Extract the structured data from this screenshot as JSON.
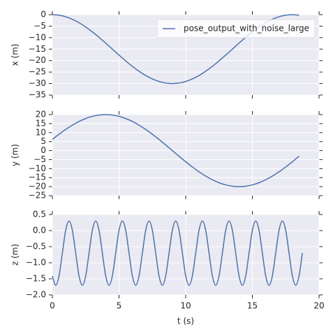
{
  "chart_data": [
    {
      "type": "line",
      "ylabel": "x (m)",
      "xlim": [
        0,
        20
      ],
      "xticks": [
        0,
        5,
        10,
        15,
        20
      ],
      "ylim": [
        -35,
        0
      ],
      "yticks": [
        {
          "value": -35,
          "label": "−35"
        },
        {
          "value": -30,
          "label": "−30"
        },
        {
          "value": -25,
          "label": "−25"
        },
        {
          "value": -20,
          "label": "−20"
        },
        {
          "value": -15,
          "label": "−15"
        },
        {
          "value": -10,
          "label": "−10"
        },
        {
          "value": -5,
          "label": "−5"
        },
        0
      ],
      "grid": true,
      "legend": "upper right",
      "x": [
        0,
        0.5,
        1,
        1.5,
        2,
        2.5,
        3,
        3.5,
        4,
        4.5,
        5,
        5.5,
        6,
        6.5,
        7,
        7.5,
        8,
        8.5,
        9,
        9.5,
        10,
        10.5,
        11,
        11.5,
        12,
        12.5,
        13,
        13.5,
        14,
        14.5,
        15,
        15.5,
        16,
        16.5,
        17,
        17.5,
        18,
        18.5
      ],
      "series": [
        {
          "name": "pose_output_with_noise_large",
          "color": "#4c72b0",
          "values": [
            0,
            -0.23,
            -0.9,
            -2.01,
            -3.51,
            -5.36,
            -7.5,
            -9.87,
            -12.39,
            -15,
            -17.61,
            -20.13,
            -22.5,
            -24.64,
            -26.49,
            -27.99,
            -29.1,
            -29.77,
            -30,
            -29.77,
            -29.1,
            -27.99,
            -26.49,
            -24.64,
            -22.5,
            -20.13,
            -17.61,
            -15,
            -12.39,
            -9.87,
            -7.5,
            -5.36,
            -3.51,
            -2.01,
            -0.9,
            -0.23,
            0,
            -0.23
          ]
        }
      ]
    },
    {
      "type": "line",
      "ylabel": "y (m)",
      "xlim": [
        0,
        20
      ],
      "xticks": [
        0,
        5,
        10,
        15,
        20
      ],
      "ylim": [
        -25,
        20
      ],
      "yticks": [
        {
          "value": -25,
          "label": "−25"
        },
        {
          "value": -20,
          "label": "−20"
        },
        {
          "value": -15,
          "label": "−15"
        },
        {
          "value": -10,
          "label": "−10"
        },
        {
          "value": -5,
          "label": "−5"
        },
        0,
        5,
        10,
        15,
        20
      ],
      "grid": true,
      "x": [
        0,
        0.5,
        1,
        1.5,
        2,
        2.5,
        3,
        3.5,
        4,
        4.5,
        5,
        5.5,
        6,
        6.5,
        7,
        7.5,
        8,
        8.5,
        9,
        9.5,
        10,
        10.5,
        11,
        11.5,
        12,
        12.5,
        13,
        13.5,
        14,
        14.5,
        15,
        15.5,
        16,
        16.5,
        17,
        17.5,
        18,
        18.5
      ],
      "series": [
        {
          "color": "#4c72b0",
          "values": [
            6.18,
            9.08,
            11.76,
            14.14,
            16.18,
            17.82,
            19.02,
            19.75,
            20,
            19.75,
            19.02,
            17.82,
            16.18,
            14.14,
            11.76,
            9.08,
            6.18,
            3.13,
            0,
            -3.13,
            -6.18,
            -9.08,
            -11.76,
            -14.14,
            -16.18,
            -17.82,
            -19.02,
            -19.75,
            -20,
            -19.75,
            -19.02,
            -17.82,
            -16.18,
            -14.14,
            -11.76,
            -9.08,
            -6.18,
            -3.13
          ]
        }
      ]
    },
    {
      "type": "line",
      "ylabel": "z (m)",
      "xlabel": "t (s)",
      "xlim": [
        0,
        20
      ],
      "xticks": [
        0,
        5,
        10,
        15,
        20
      ],
      "ylim": [
        -2,
        0.5
      ],
      "yticks": [
        {
          "value": -2,
          "label": "−2.0"
        },
        {
          "value": -1.5,
          "label": "−1.5"
        },
        {
          "value": -1,
          "label": "−1.0"
        },
        {
          "value": -0.5,
          "label": "−0.5"
        },
        {
          "value": 0,
          "label": "0.0"
        },
        0.5
      ],
      "grid": true,
      "x": [
        0,
        0.25,
        0.5,
        0.75,
        1,
        1.25,
        1.5,
        1.75,
        2,
        2.25,
        2.5,
        2.75,
        3,
        3.25,
        3.5,
        3.75,
        4,
        4.25,
        4.5,
        4.75,
        5,
        5.25,
        5.5,
        5.75,
        6,
        6.25,
        6.5,
        6.75,
        7,
        7.25,
        7.5,
        7.75,
        8,
        8.25,
        8.5,
        8.75,
        9,
        9.25,
        9.5,
        9.75,
        10,
        10.25,
        10.5,
        10.75,
        11,
        11.25,
        11.5,
        11.75,
        12,
        12.25,
        12.5,
        12.75,
        13,
        13.25,
        13.5,
        13.75,
        14,
        14.25,
        14.5,
        14.75,
        15,
        15.25,
        15.5,
        15.75,
        16,
        16.25,
        16.5,
        16.75,
        17,
        17.25,
        17.5,
        17.75,
        18,
        18.25,
        18.5,
        18.75
      ],
      "series": [
        {
          "color": "#4c72b0",
          "values": [
            -1.41,
            -1.7,
            -1.41,
            -0.7,
            0.01,
            0.3,
            0.01,
            -0.7,
            -1.41,
            -1.7,
            -1.41,
            -0.7,
            0.01,
            0.3,
            0.01,
            -0.7,
            -1.41,
            -1.7,
            -1.41,
            -0.7,
            0.01,
            0.3,
            0.01,
            -0.7,
            -1.41,
            -1.7,
            -1.41,
            -0.7,
            0.01,
            0.3,
            0.01,
            -0.7,
            -1.41,
            -1.7,
            -1.41,
            -0.7,
            0.01,
            0.3,
            0.01,
            -0.7,
            -1.41,
            -1.7,
            -1.41,
            -0.7,
            0.01,
            0.3,
            0.01,
            -0.7,
            -1.41,
            -1.7,
            -1.41,
            -0.7,
            0.01,
            0.3,
            0.01,
            -0.7,
            -1.41,
            -1.7,
            -1.41,
            -0.7,
            0.01,
            0.3,
            0.01,
            -0.7,
            -1.41,
            -1.7,
            -1.41,
            -0.7,
            0.01,
            0.3,
            0.01,
            -0.7,
            -1.41,
            -1.7,
            -1.41,
            -0.7
          ]
        }
      ]
    }
  ]
}
